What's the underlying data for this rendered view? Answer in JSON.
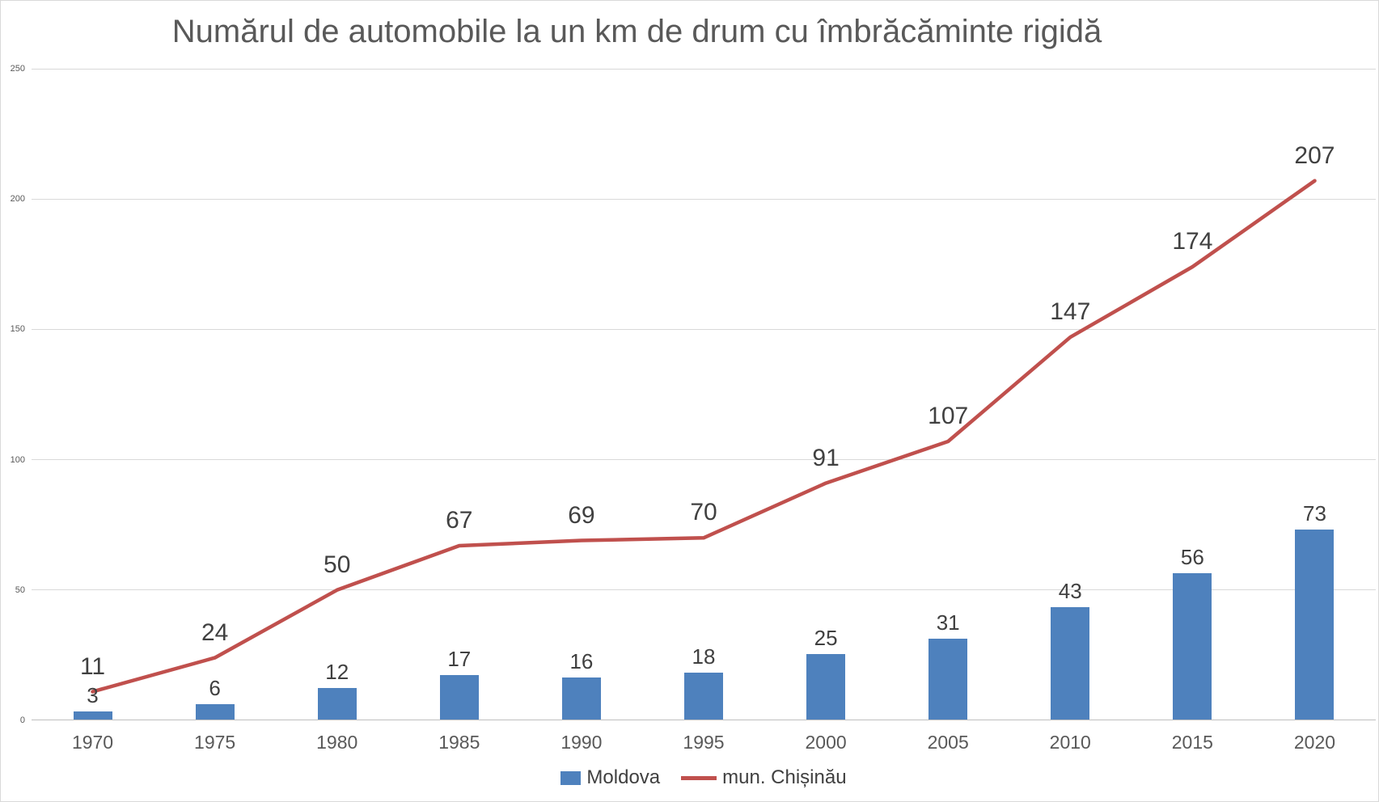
{
  "chart_data": {
    "type": "bar",
    "title": "Numărul de automobile la un km de drum cu îmbrăcăminte rigidă",
    "categories": [
      "1970",
      "1975",
      "1980",
      "1985",
      "1990",
      "1995",
      "2000",
      "2005",
      "2010",
      "2015",
      "2020"
    ],
    "series": [
      {
        "name": "Moldova",
        "type": "bar",
        "color": "#4E81BD",
        "values": [
          3,
          6,
          12,
          17,
          16,
          18,
          25,
          31,
          43,
          56,
          73
        ]
      },
      {
        "name": "mun. Chișinău",
        "type": "line",
        "color": "#C0504D",
        "values": [
          11,
          24,
          50,
          67,
          69,
          70,
          91,
          107,
          147,
          174,
          207
        ]
      }
    ],
    "xlabel": "",
    "ylabel": "",
    "ylim": [
      0,
      250
    ],
    "yticks": [
      0,
      50,
      100,
      150,
      200,
      250
    ],
    "grid": true,
    "data_labels": true,
    "legend_position": "bottom"
  },
  "colors": {
    "bar": "#4E81BD",
    "line": "#C0504D",
    "gridline": "#D9D9D9",
    "axis_line": "#BFBFBF",
    "title_text": "#595959",
    "data_label_text": "#404040",
    "axis_label_text": "#595959",
    "background": "#FFFFFF",
    "border": "#D9D9D9"
  }
}
